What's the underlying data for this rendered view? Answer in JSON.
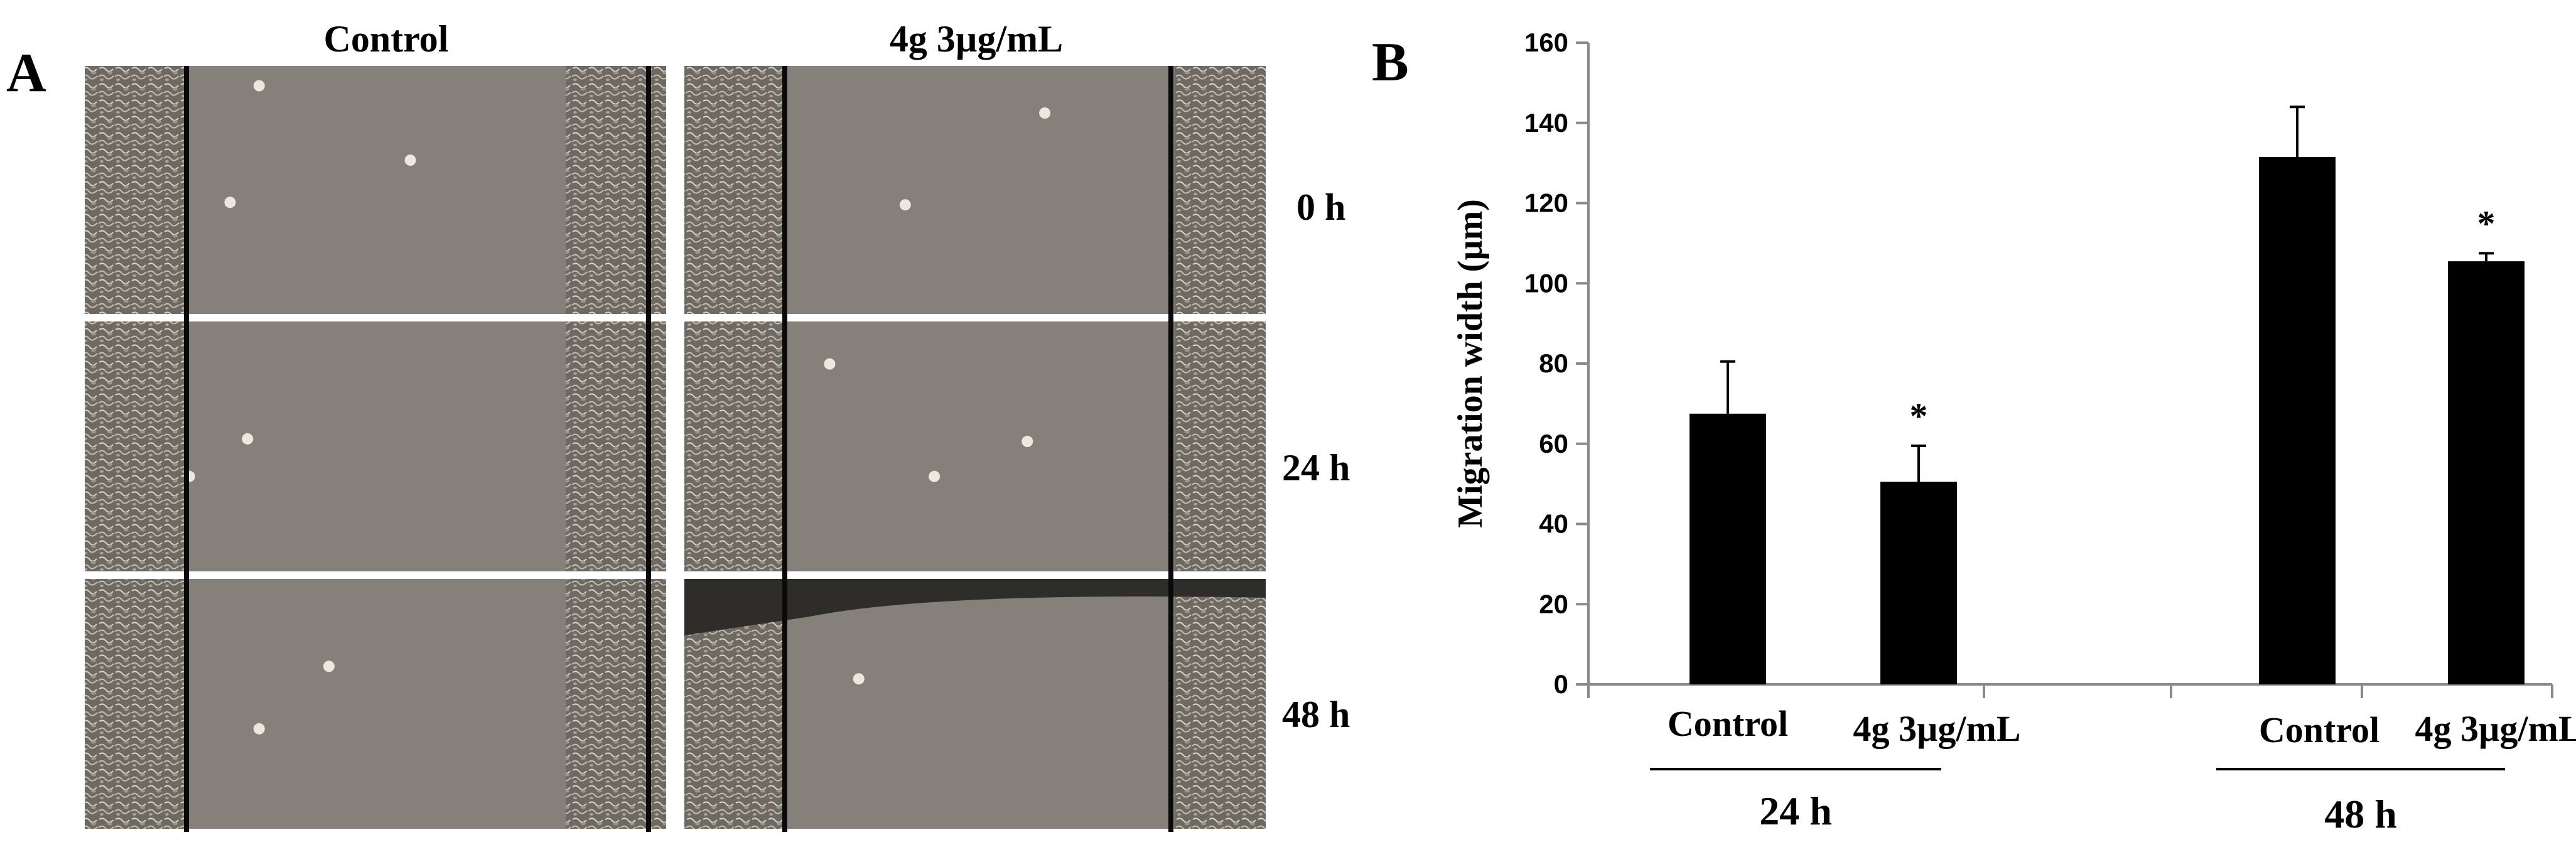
{
  "figure": {
    "panel_a_label": "A",
    "panel_b_label": "B",
    "columns": [
      "Control",
      "4g 3µg/mL"
    ],
    "rows": [
      "0 h",
      "24 h",
      "48 h"
    ]
  },
  "chart_data": {
    "type": "bar",
    "title": "",
    "xlabel": "",
    "ylabel": "Migration width (µm)",
    "ylim": [
      0,
      160
    ],
    "yticks": [
      0,
      20,
      40,
      60,
      80,
      100,
      120,
      140,
      160
    ],
    "grid": false,
    "legend": "none",
    "bar_color": "#000000",
    "groups": [
      {
        "label": "24 h",
        "bars": [
          {
            "category": "Control",
            "value": 67.5,
            "error": 13,
            "significance": ""
          },
          {
            "category": "4g 3µg/mL",
            "value": 50.5,
            "error": 9,
            "significance": "*"
          }
        ]
      },
      {
        "label": "48 h",
        "bars": [
          {
            "category": "Control",
            "value": 131.5,
            "error": 12.5,
            "significance": ""
          },
          {
            "category": "4g 3µg/mL",
            "value": 105.5,
            "error": 2,
            "significance": "*"
          }
        ]
      }
    ]
  }
}
